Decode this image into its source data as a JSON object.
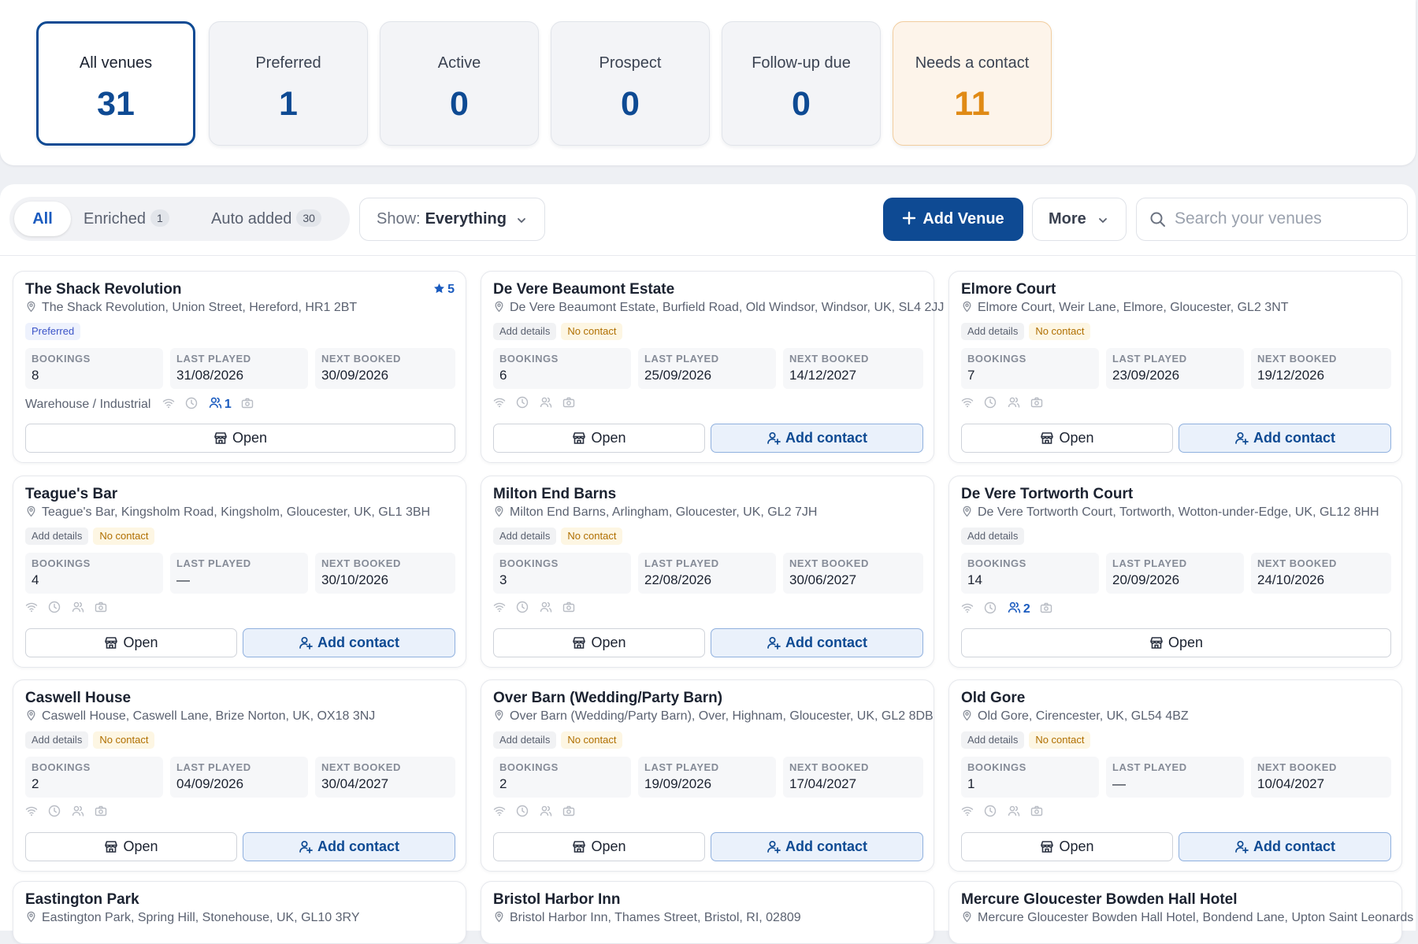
{
  "stats": [
    {
      "label": "All venues",
      "value": "31"
    },
    {
      "label": "Preferred",
      "value": "1"
    },
    {
      "label": "Active",
      "value": "0"
    },
    {
      "label": "Prospect",
      "value": "0"
    },
    {
      "label": "Follow-up due",
      "value": "0"
    },
    {
      "label": "Needs a contact",
      "value": "11"
    }
  ],
  "filters": {
    "tabs": [
      {
        "label": "All"
      },
      {
        "label": "Enriched",
        "count": "1"
      },
      {
        "label": "Auto added",
        "count": "30"
      }
    ],
    "show_label": "Show:",
    "show_value": "Everything"
  },
  "actions": {
    "add_venue": "Add Venue",
    "more": "More",
    "search_placeholder": "Search your venues"
  },
  "card_labels": {
    "bookings": "BOOKINGS",
    "last_played": "LAST PLAYED",
    "next_booked": "NEXT BOOKED",
    "open": "Open",
    "add_contact": "Add contact",
    "add_details": "Add details",
    "no_contact": "No contact",
    "preferred": "Preferred"
  },
  "venues": [
    {
      "name": "The Shack Revolution",
      "address": "The Shack Revolution, Union Street, Hereford, HR1 2BT",
      "rating": "5",
      "bookings": "8",
      "last_played": "31/08/2026",
      "next_booked": "30/09/2026",
      "type": "Warehouse / Industrial",
      "contacts": "1"
    },
    {
      "name": "De Vere Beaumont Estate",
      "address": "De Vere Beaumont Estate, Burfield Road, Old Windsor, Windsor, UK, SL4 2JJ",
      "bookings": "6",
      "last_played": "25/09/2026",
      "next_booked": "14/12/2027"
    },
    {
      "name": "Elmore Court",
      "address": "Elmore Court, Weir Lane, Elmore, Gloucester, GL2 3NT",
      "bookings": "7",
      "last_played": "23/09/2026",
      "next_booked": "19/12/2026"
    },
    {
      "name": "Teague's Bar",
      "address": "Teague's Bar, Kingsholm Road, Kingsholm, Gloucester, UK, GL1 3BH",
      "bookings": "4",
      "last_played": "—",
      "next_booked": "30/10/2026"
    },
    {
      "name": "Milton End Barns",
      "address": "Milton End Barns, Arlingham, Gloucester, UK, GL2 7JH",
      "bookings": "3",
      "last_played": "22/08/2026",
      "next_booked": "30/06/2027"
    },
    {
      "name": "De Vere Tortworth Court",
      "address": "De Vere Tortworth Court, Tortworth, Wotton-under-Edge, UK, GL12 8HH",
      "bookings": "14",
      "last_played": "20/09/2026",
      "next_booked": "24/10/2026",
      "contacts": "2"
    },
    {
      "name": "Caswell House",
      "address": "Caswell House, Caswell Lane, Brize Norton, UK, OX18 3NJ",
      "bookings": "2",
      "last_played": "04/09/2026",
      "next_booked": "30/04/2027"
    },
    {
      "name": "Over Barn (Wedding/Party Barn)",
      "address": "Over Barn (Wedding/Party Barn), Over, Highnam, Gloucester, UK, GL2 8DB",
      "bookings": "2",
      "last_played": "19/09/2026",
      "next_booked": "17/04/2027"
    },
    {
      "name": "Old Gore",
      "address": "Old Gore, Cirencester, UK, GL54 4BZ",
      "bookings": "1",
      "last_played": "—",
      "next_booked": "10/04/2027"
    },
    {
      "name": "Eastington Park",
      "address": "Eastington Park, Spring Hill, Stonehouse, UK, GL10 3RY"
    },
    {
      "name": "Bristol Harbor Inn",
      "address": "Bristol Harbor Inn, Thames Street, Bristol, RI, 02809"
    },
    {
      "name": "Mercure Gloucester Bowden Hall Hotel",
      "address": "Mercure Gloucester Bowden Hall Hotel, Bondend Lane, Upton Saint Leonards"
    }
  ]
}
